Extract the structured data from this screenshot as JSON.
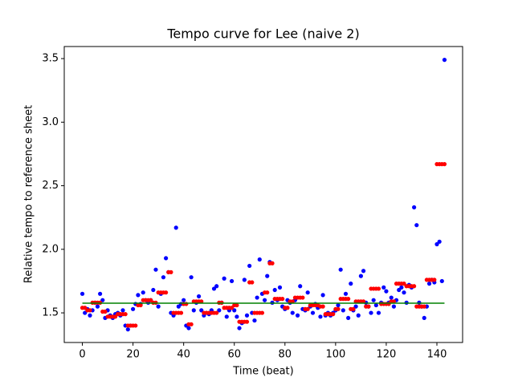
{
  "chart_data": {
    "type": "scatter",
    "title": "Tempo curve for Lee (naive 2)",
    "xlabel": "Time (beat)",
    "ylabel": "Relative tempo to reference sheet",
    "x": [
      0,
      1,
      2,
      3,
      4,
      5,
      6,
      7,
      8,
      9,
      10,
      11,
      12,
      13,
      14,
      15,
      16,
      17,
      18,
      19,
      20,
      21,
      22,
      23,
      24,
      25,
      26,
      27,
      28,
      29,
      30,
      31,
      32,
      33,
      34,
      35,
      36,
      37,
      38,
      39,
      40,
      41,
      42,
      43,
      44,
      45,
      46,
      47,
      48,
      49,
      50,
      51,
      52,
      53,
      54,
      55,
      56,
      57,
      58,
      59,
      60,
      61,
      62,
      63,
      64,
      65,
      66,
      67,
      68,
      69,
      70,
      71,
      72,
      73,
      74,
      75,
      76,
      77,
      78,
      79,
      80,
      81,
      82,
      83,
      84,
      85,
      86,
      87,
      88,
      89,
      90,
      91,
      92,
      93,
      94,
      95,
      96,
      97,
      98,
      99,
      100,
      101,
      102,
      103,
      104,
      105,
      106,
      107,
      108,
      109,
      110,
      111,
      112,
      113,
      114,
      115,
      116,
      117,
      118,
      119,
      120,
      121,
      122,
      123,
      124,
      125,
      126,
      127,
      128,
      129,
      130,
      131,
      132,
      133,
      134,
      135,
      136,
      137,
      138,
      139,
      140,
      141,
      142,
      143
    ],
    "series": [
      {
        "color": "blue",
        "values": [
          1.65,
          1.5,
          1.53,
          1.48,
          1.52,
          1.58,
          1.55,
          1.65,
          1.6,
          1.46,
          1.52,
          1.48,
          1.46,
          1.49,
          1.5,
          1.48,
          1.52,
          1.4,
          1.37,
          1.4,
          1.53,
          1.57,
          1.64,
          1.57,
          1.66,
          1.6,
          1.58,
          1.6,
          1.68,
          1.84,
          1.55,
          1.65,
          1.78,
          1.93,
          1.82,
          1.5,
          1.48,
          2.17,
          1.55,
          1.57,
          1.6,
          1.4,
          1.38,
          1.78,
          1.52,
          1.58,
          1.63,
          1.52,
          1.48,
          1.5,
          1.49,
          1.52,
          1.69,
          1.71,
          1.52,
          1.58,
          1.77,
          1.47,
          1.52,
          1.75,
          1.52,
          1.47,
          1.38,
          1.42,
          1.76,
          1.48,
          1.87,
          1.5,
          1.44,
          1.62,
          1.92,
          1.65,
          1.6,
          1.79,
          1.9,
          1.58,
          1.68,
          1.6,
          1.7,
          1.55,
          1.53,
          1.6,
          1.58,
          1.5,
          1.6,
          1.48,
          1.71,
          1.53,
          1.52,
          1.66,
          1.55,
          1.5,
          1.57,
          1.54,
          1.47,
          1.64,
          1.48,
          1.5,
          1.48,
          1.5,
          1.52,
          1.56,
          1.84,
          1.52,
          1.65,
          1.46,
          1.73,
          1.52,
          1.55,
          1.48,
          1.79,
          1.83,
          1.58,
          1.55,
          1.5,
          1.6,
          1.56,
          1.5,
          1.58,
          1.7,
          1.67,
          1.58,
          1.62,
          1.55,
          1.6,
          1.68,
          1.7,
          1.66,
          1.58,
          1.72,
          1.7,
          2.33,
          2.19,
          1.58,
          1.55,
          1.46,
          1.55,
          1.73,
          1.76,
          1.74,
          2.04,
          2.06,
          1.75,
          3.49
        ]
      },
      {
        "color": "red",
        "values": [
          1.54,
          1.54,
          1.52,
          1.52,
          1.58,
          1.58,
          1.58,
          1.58,
          1.51,
          1.51,
          1.47,
          1.47,
          1.47,
          1.47,
          1.49,
          1.49,
          1.49,
          1.49,
          1.4,
          1.4,
          1.4,
          1.4,
          1.56,
          1.56,
          1.6,
          1.6,
          1.6,
          1.6,
          1.58,
          1.58,
          1.66,
          1.66,
          1.66,
          1.66,
          1.82,
          1.82,
          1.5,
          1.5,
          1.5,
          1.5,
          1.57,
          1.57,
          1.41,
          1.41,
          1.59,
          1.59,
          1.59,
          1.59,
          1.5,
          1.5,
          1.5,
          1.5,
          1.5,
          1.5,
          1.58,
          1.58,
          1.54,
          1.54,
          1.54,
          1.54,
          1.56,
          1.56,
          1.43,
          1.43,
          1.43,
          1.43,
          1.74,
          1.74,
          1.5,
          1.5,
          1.5,
          1.5,
          1.66,
          1.66,
          1.89,
          1.89,
          1.61,
          1.61,
          1.61,
          1.61,
          1.54,
          1.54,
          1.59,
          1.59,
          1.62,
          1.62,
          1.62,
          1.62,
          1.53,
          1.53,
          1.56,
          1.56,
          1.56,
          1.56,
          1.55,
          1.55,
          1.49,
          1.49,
          1.49,
          1.49,
          1.53,
          1.53,
          1.61,
          1.61,
          1.61,
          1.61,
          1.53,
          1.53,
          1.59,
          1.59,
          1.59,
          1.59,
          1.55,
          1.55,
          1.69,
          1.69,
          1.69,
          1.69,
          1.57,
          1.57,
          1.57,
          1.57,
          1.59,
          1.59,
          1.73,
          1.73,
          1.73,
          1.73,
          1.71,
          1.71,
          1.71,
          1.71,
          1.55,
          1.55,
          1.55,
          1.55,
          1.76,
          1.76,
          1.76,
          1.76,
          2.67,
          2.67,
          2.67,
          2.67
        ]
      }
    ],
    "reference_line": {
      "color": "green",
      "x": [
        0,
        143
      ],
      "y": 1.576
    },
    "xlim": [
      -7.15,
      150.15
    ],
    "xticks": [
      0,
      20,
      40,
      60,
      80,
      100,
      120,
      140
    ],
    "ylim": [
      1.267,
      3.595
    ],
    "yticks": [
      1.5,
      {
        "value": 2,
        "label": "2.0"
      },
      2.5,
      {
        "value": 3,
        "label": "3.0"
      },
      3.5
    ]
  }
}
